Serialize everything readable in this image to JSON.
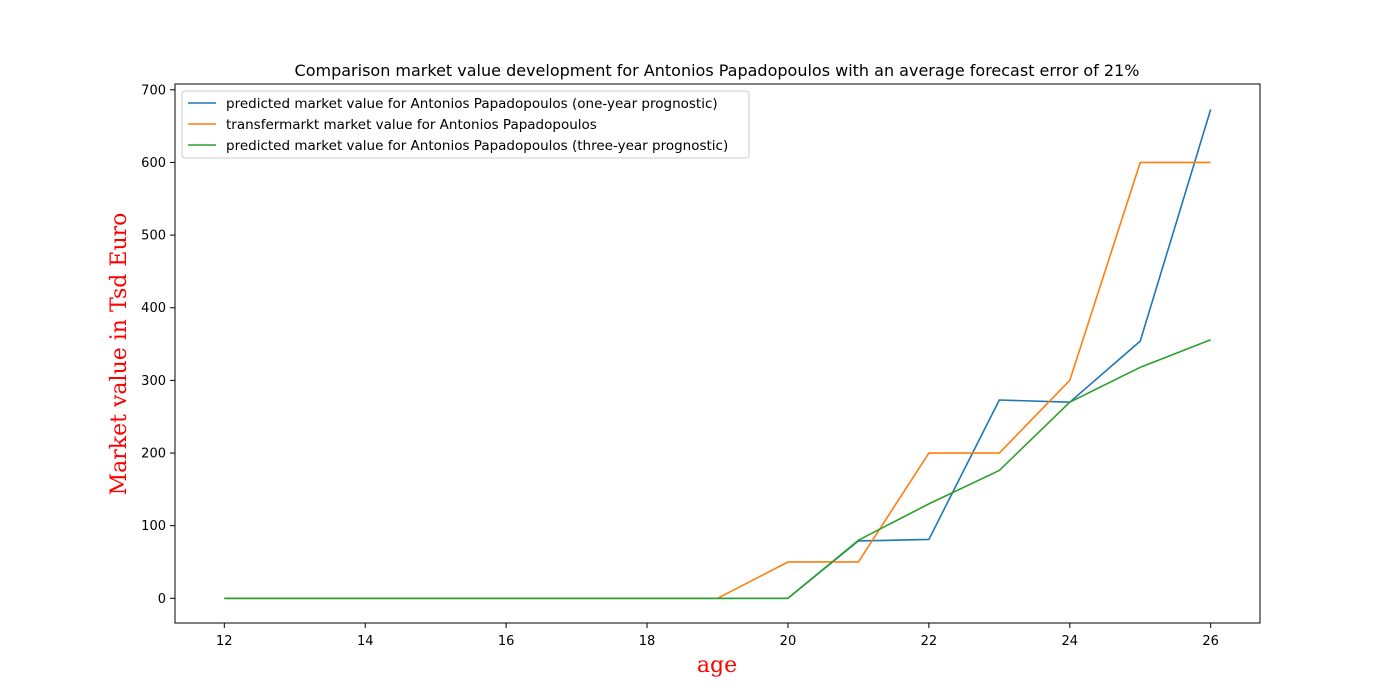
{
  "chart_data": {
    "type": "line",
    "title": "Comparison market value development for Antonios Papadopoulos with an average forecast error of 21%",
    "xlabel": "age",
    "ylabel": "Market value in Tsd Euro",
    "xlim": [
      11.3,
      26.7
    ],
    "ylim": [
      -34,
      708
    ],
    "x_ticks": [
      12,
      14,
      16,
      18,
      20,
      22,
      24,
      26
    ],
    "y_ticks": [
      0,
      100,
      200,
      300,
      400,
      500,
      600,
      700
    ],
    "grid": false,
    "legend_position": "top-left",
    "x": [
      12,
      13,
      14,
      15,
      16,
      17,
      18,
      19,
      20,
      21,
      22,
      23,
      24,
      25,
      26
    ],
    "series": [
      {
        "name": "predicted market value for Antonios Papadopoulos (one-year prognostic)",
        "color": "#1f77b4",
        "values": [
          0,
          0,
          0,
          0,
          0,
          0,
          0,
          0,
          0,
          79,
          81,
          273,
          270,
          354,
          673
        ]
      },
      {
        "name": "transfermarkt market value for Antonios Papadopoulos",
        "color": "#ff7f0e",
        "values": [
          0,
          0,
          0,
          0,
          0,
          0,
          0,
          0,
          50,
          50,
          200,
          200,
          300,
          600,
          600
        ]
      },
      {
        "name": "predicted market value for Antonios Papadopoulos (three-year prognostic)",
        "color": "#2ca02c",
        "values": [
          0,
          0,
          0,
          0,
          0,
          0,
          0,
          0,
          0,
          80,
          130,
          176,
          270,
          318,
          356
        ]
      }
    ]
  }
}
